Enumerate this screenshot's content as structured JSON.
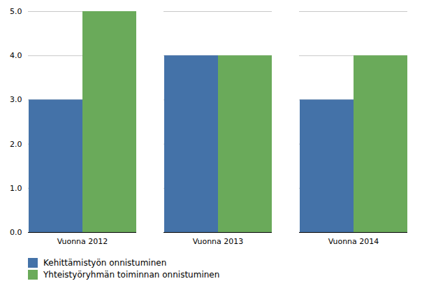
{
  "chart_data": {
    "type": "bar",
    "categories": [
      "Vuonna 2012",
      "Vuonna 2013",
      "Vuonna 2014"
    ],
    "series": [
      {
        "name": "Kehittämistyön onnistuminen",
        "color": "#4472a8",
        "values": [
          3,
          4,
          3
        ]
      },
      {
        "name": "Yhteistyöryhmän toiminnan onnistuminen",
        "color": "#6aaa5a",
        "values": [
          5,
          4,
          4
        ]
      }
    ],
    "ylim": [
      0,
      5
    ],
    "yticks": [
      0,
      1,
      2,
      3,
      4,
      5
    ],
    "grid": true,
    "legend": "lower left"
  }
}
